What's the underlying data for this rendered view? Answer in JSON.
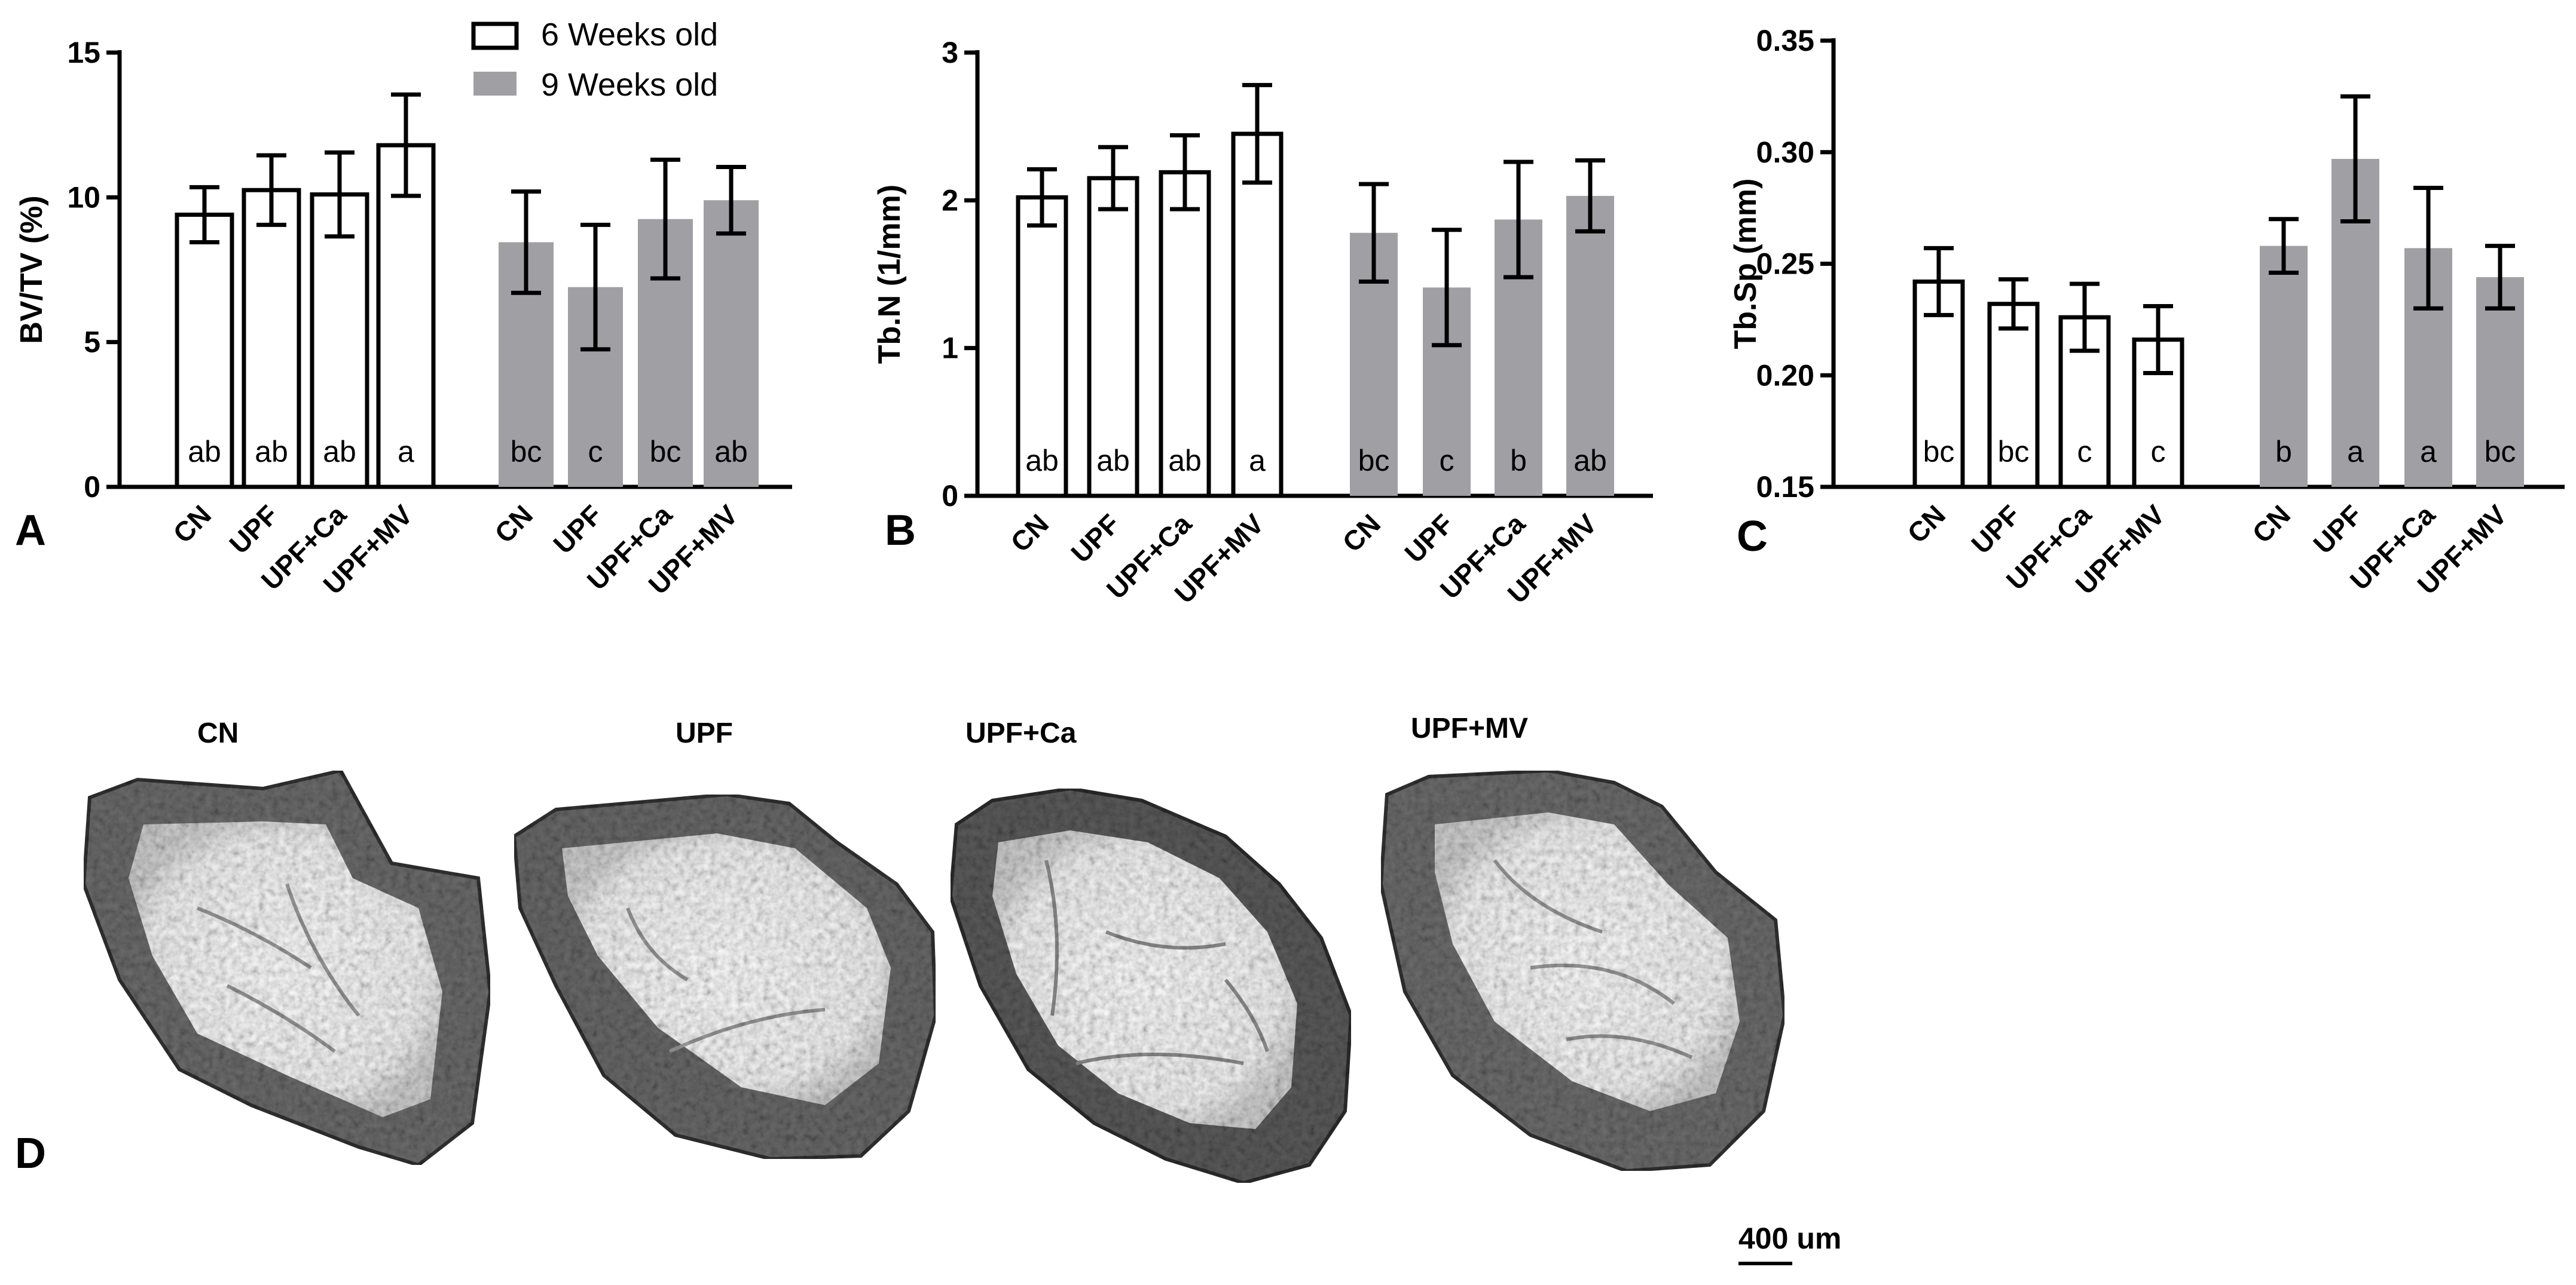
{
  "panel_labels": {
    "A": "A",
    "B": "B",
    "C": "C",
    "D": "D"
  },
  "legend": {
    "entries": [
      {
        "label": "6 Weeks old",
        "style": "open"
      },
      {
        "label": "9 Weeks old",
        "style": "filled"
      }
    ]
  },
  "colors": {
    "open_fill": "#ffffff",
    "filled_fill": "#a0a0a4",
    "stroke": "#000000"
  },
  "chart_data": [
    {
      "id": "A",
      "type": "bar",
      "ylabel": "BV/TV (%)",
      "ylim": [
        0,
        15
      ],
      "yticks": [
        0,
        5,
        10,
        15
      ],
      "categories": [
        "CN",
        "UPF",
        "UPF+Ca",
        "UPF+MV"
      ],
      "series": [
        {
          "name": "6 Weeks old",
          "values": [
            9.4,
            10.25,
            10.1,
            11.8
          ],
          "errors": [
            0.95,
            1.2,
            1.45,
            1.75
          ],
          "letters": [
            "ab",
            "ab",
            "ab",
            "a"
          ]
        },
        {
          "name": "9 Weeks old",
          "values": [
            8.45,
            6.9,
            9.25,
            9.9
          ],
          "errors": [
            1.75,
            2.15,
            2.05,
            1.15
          ],
          "letters": [
            "bc",
            "c",
            "bc",
            "ab"
          ]
        }
      ]
    },
    {
      "id": "B",
      "type": "bar",
      "ylabel": "Tb.N (1/mm)",
      "ylim": [
        0,
        3
      ],
      "yticks": [
        0,
        1,
        2,
        3
      ],
      "categories": [
        "CN",
        "UPF",
        "UPF+Ca",
        "UPF+MV"
      ],
      "series": [
        {
          "name": "6 Weeks old",
          "values": [
            2.02,
            2.15,
            2.19,
            2.45
          ],
          "errors": [
            0.19,
            0.21,
            0.25,
            0.33
          ],
          "letters": [
            "ab",
            "ab",
            "ab",
            "a"
          ]
        },
        {
          "name": "9 Weeks old",
          "values": [
            1.78,
            1.41,
            1.87,
            2.03
          ],
          "errors": [
            0.33,
            0.39,
            0.39,
            0.24
          ],
          "letters": [
            "bc",
            "c",
            "b",
            "ab"
          ]
        }
      ]
    },
    {
      "id": "C",
      "type": "bar",
      "ylabel": "Tb.Sp (mm)",
      "ylim": [
        0.15,
        0.35
      ],
      "yticks": [
        "0.15",
        "0.20",
        "0.25",
        "0.30",
        "0.35"
      ],
      "categories": [
        "CN",
        "UPF",
        "UPF+Ca",
        "UPF+MV"
      ],
      "series": [
        {
          "name": "6 Weeks old",
          "values": [
            0.242,
            0.232,
            0.226,
            0.216
          ],
          "errors": [
            0.015,
            0.011,
            0.015,
            0.015
          ],
          "letters": [
            "bc",
            "bc",
            "c",
            "c"
          ]
        },
        {
          "name": "9 Weeks old",
          "values": [
            0.258,
            0.297,
            0.257,
            0.244
          ],
          "errors": [
            0.012,
            0.028,
            0.027,
            0.014
          ],
          "letters": [
            "b",
            "a",
            "a",
            "bc"
          ]
        }
      ]
    }
  ],
  "micro_ct": {
    "labels": [
      "CN",
      "UPF",
      "UPF+Ca",
      "UPF+MV"
    ],
    "scale_bar": "400 um"
  }
}
